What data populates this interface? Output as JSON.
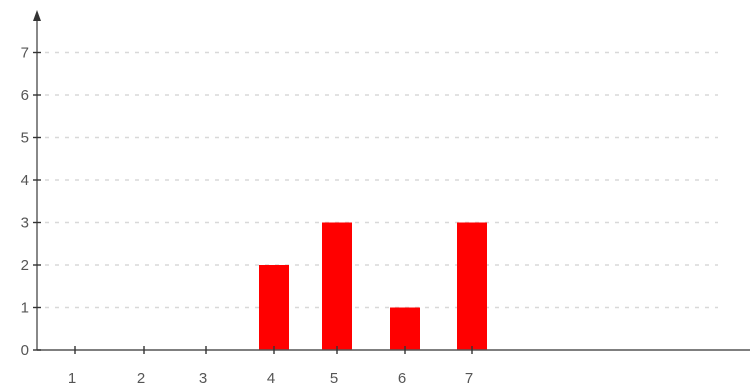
{
  "chart_data": {
    "type": "bar",
    "categories": [
      "1",
      "2",
      "3",
      "4",
      "5",
      "6",
      "7"
    ],
    "values": [
      0,
      0,
      0,
      2,
      3,
      1,
      3
    ],
    "y_ticks": [
      "0",
      "1",
      "2",
      "3",
      "4",
      "5",
      "6",
      "7"
    ],
    "ylim": [
      0,
      7.5
    ],
    "grid": true,
    "title": "",
    "xlabel": "",
    "ylabel": "",
    "colors": {
      "bar": "#ff0000",
      "grid": "#d8d8d8",
      "axis": "#555555"
    }
  }
}
